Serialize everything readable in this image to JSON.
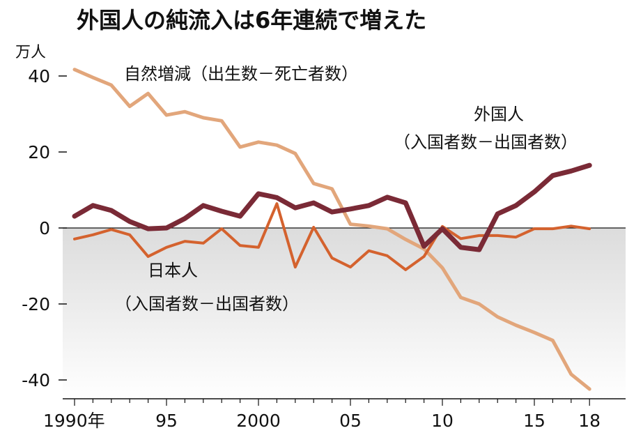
{
  "chart_data": {
    "type": "line",
    "title": "外国人の純流入は6年連続で増えた",
    "ylabel": "万人",
    "xlabel": "",
    "ylim": [
      -44,
      44
    ],
    "xlim": [
      1989.3,
      2019.5
    ],
    "yticks": [
      40,
      20,
      0,
      -20,
      -40
    ],
    "ytick_labels": [
      "40",
      "20",
      "0",
      "-20",
      "-40"
    ],
    "xticks": [
      1990,
      1995,
      2000,
      2005,
      2010,
      2015,
      2018
    ],
    "xtick_labels": [
      "1990年",
      "95",
      "2000",
      "05",
      "10",
      "15",
      "18"
    ],
    "x": [
      1990,
      1991,
      1992,
      1993,
      1994,
      1995,
      1996,
      1997,
      1998,
      1999,
      2000,
      2001,
      2002,
      2003,
      2004,
      2005,
      2006,
      2007,
      2008,
      2009,
      2010,
      2011,
      2012,
      2013,
      2014,
      2015,
      2016,
      2017,
      2018
    ],
    "series": [
      {
        "name": "自然増減",
        "sublabel": "（出生数－死亡者数）",
        "color": "#e2a67b",
        "width": 5,
        "values": [
          41.7,
          39.6,
          37.6,
          32.0,
          35.4,
          29.7,
          30.6,
          29.0,
          28.2,
          21.3,
          22.6,
          21.8,
          19.6,
          11.7,
          10.3,
          1.0,
          0.5,
          -0.2,
          -3.0,
          -5.5,
          -10.5,
          -18.3,
          -20.0,
          -23.4,
          -25.6,
          -27.5,
          -29.6,
          -38.5,
          -42.4
        ]
      },
      {
        "name": "外国人",
        "sublabel": "（入国者数－出国者数）",
        "color": "#7a2a36",
        "width": 7,
        "values": [
          3.1,
          5.9,
          4.6,
          1.7,
          -0.2,
          0.0,
          2.5,
          5.9,
          4.4,
          3.1,
          9.0,
          8.0,
          5.3,
          6.6,
          4.2,
          5.0,
          5.9,
          8.1,
          6.6,
          -4.8,
          -0.2,
          -5.1,
          -5.7,
          3.7,
          5.9,
          9.5,
          13.8,
          15.0,
          16.5
        ]
      },
      {
        "name": "日本人",
        "sublabel": "（入国者数－出国者数）",
        "color": "#d4622e",
        "width": 4,
        "values": [
          -2.9,
          -1.8,
          -0.4,
          -1.8,
          -7.5,
          -5.1,
          -3.5,
          -4.0,
          -0.2,
          -4.6,
          -5.1,
          6.4,
          -10.3,
          0.2,
          -7.9,
          -10.3,
          -6.0,
          -7.3,
          -11.0,
          -7.5,
          0.4,
          -2.8,
          -2.0,
          -2.0,
          -2.4,
          -0.2,
          -0.2,
          0.5,
          -0.2
        ]
      }
    ],
    "grid": false,
    "legend": "inline labels"
  }
}
